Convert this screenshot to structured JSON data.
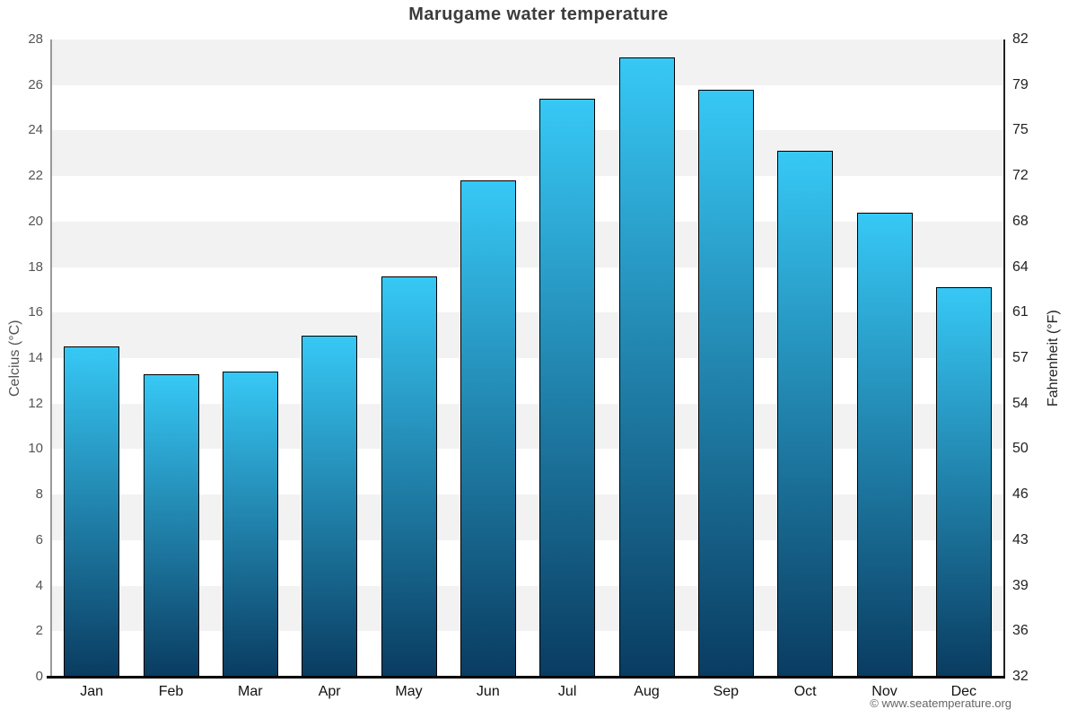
{
  "chart_data": {
    "type": "bar",
    "title": "Marugame water temperature",
    "categories": [
      "Jan",
      "Feb",
      "Mar",
      "Apr",
      "May",
      "Jun",
      "Jul",
      "Aug",
      "Sep",
      "Oct",
      "Nov",
      "Dec"
    ],
    "values": [
      14.5,
      13.3,
      13.4,
      15.0,
      17.6,
      21.8,
      25.4,
      27.2,
      25.8,
      23.1,
      20.4,
      17.1
    ],
    "unit": "°C",
    "xlabel": "",
    "ylabel_left": "Celcius (°C)",
    "ylabel_right": "Fahrenheit (°F)",
    "ylim_celsius": [
      0,
      28
    ],
    "yticks_celsius": [
      0,
      2,
      4,
      6,
      8,
      10,
      12,
      14,
      16,
      18,
      20,
      22,
      24,
      26,
      28
    ],
    "yticks_fahrenheit": [
      32,
      36,
      39,
      43,
      46,
      50,
      54,
      57,
      61,
      64,
      68,
      72,
      75,
      79,
      82
    ],
    "grid": "alternating-horizontal-bands",
    "legend": "none"
  },
  "footer": {
    "copyright": "© www.seatemperature.org"
  },
  "colors": {
    "bar_gradient_top": "#37c8f5",
    "bar_gradient_bottom": "#0a3c61",
    "bar_border": "#000000",
    "band_gray": "#f2f2f2",
    "band_white": "#ffffff",
    "title_color": "#3c3c3c",
    "left_axis_color": "#555555",
    "right_axis_color": "#222222",
    "month_label_color": "#111111",
    "copyright_color": "#666666"
  }
}
